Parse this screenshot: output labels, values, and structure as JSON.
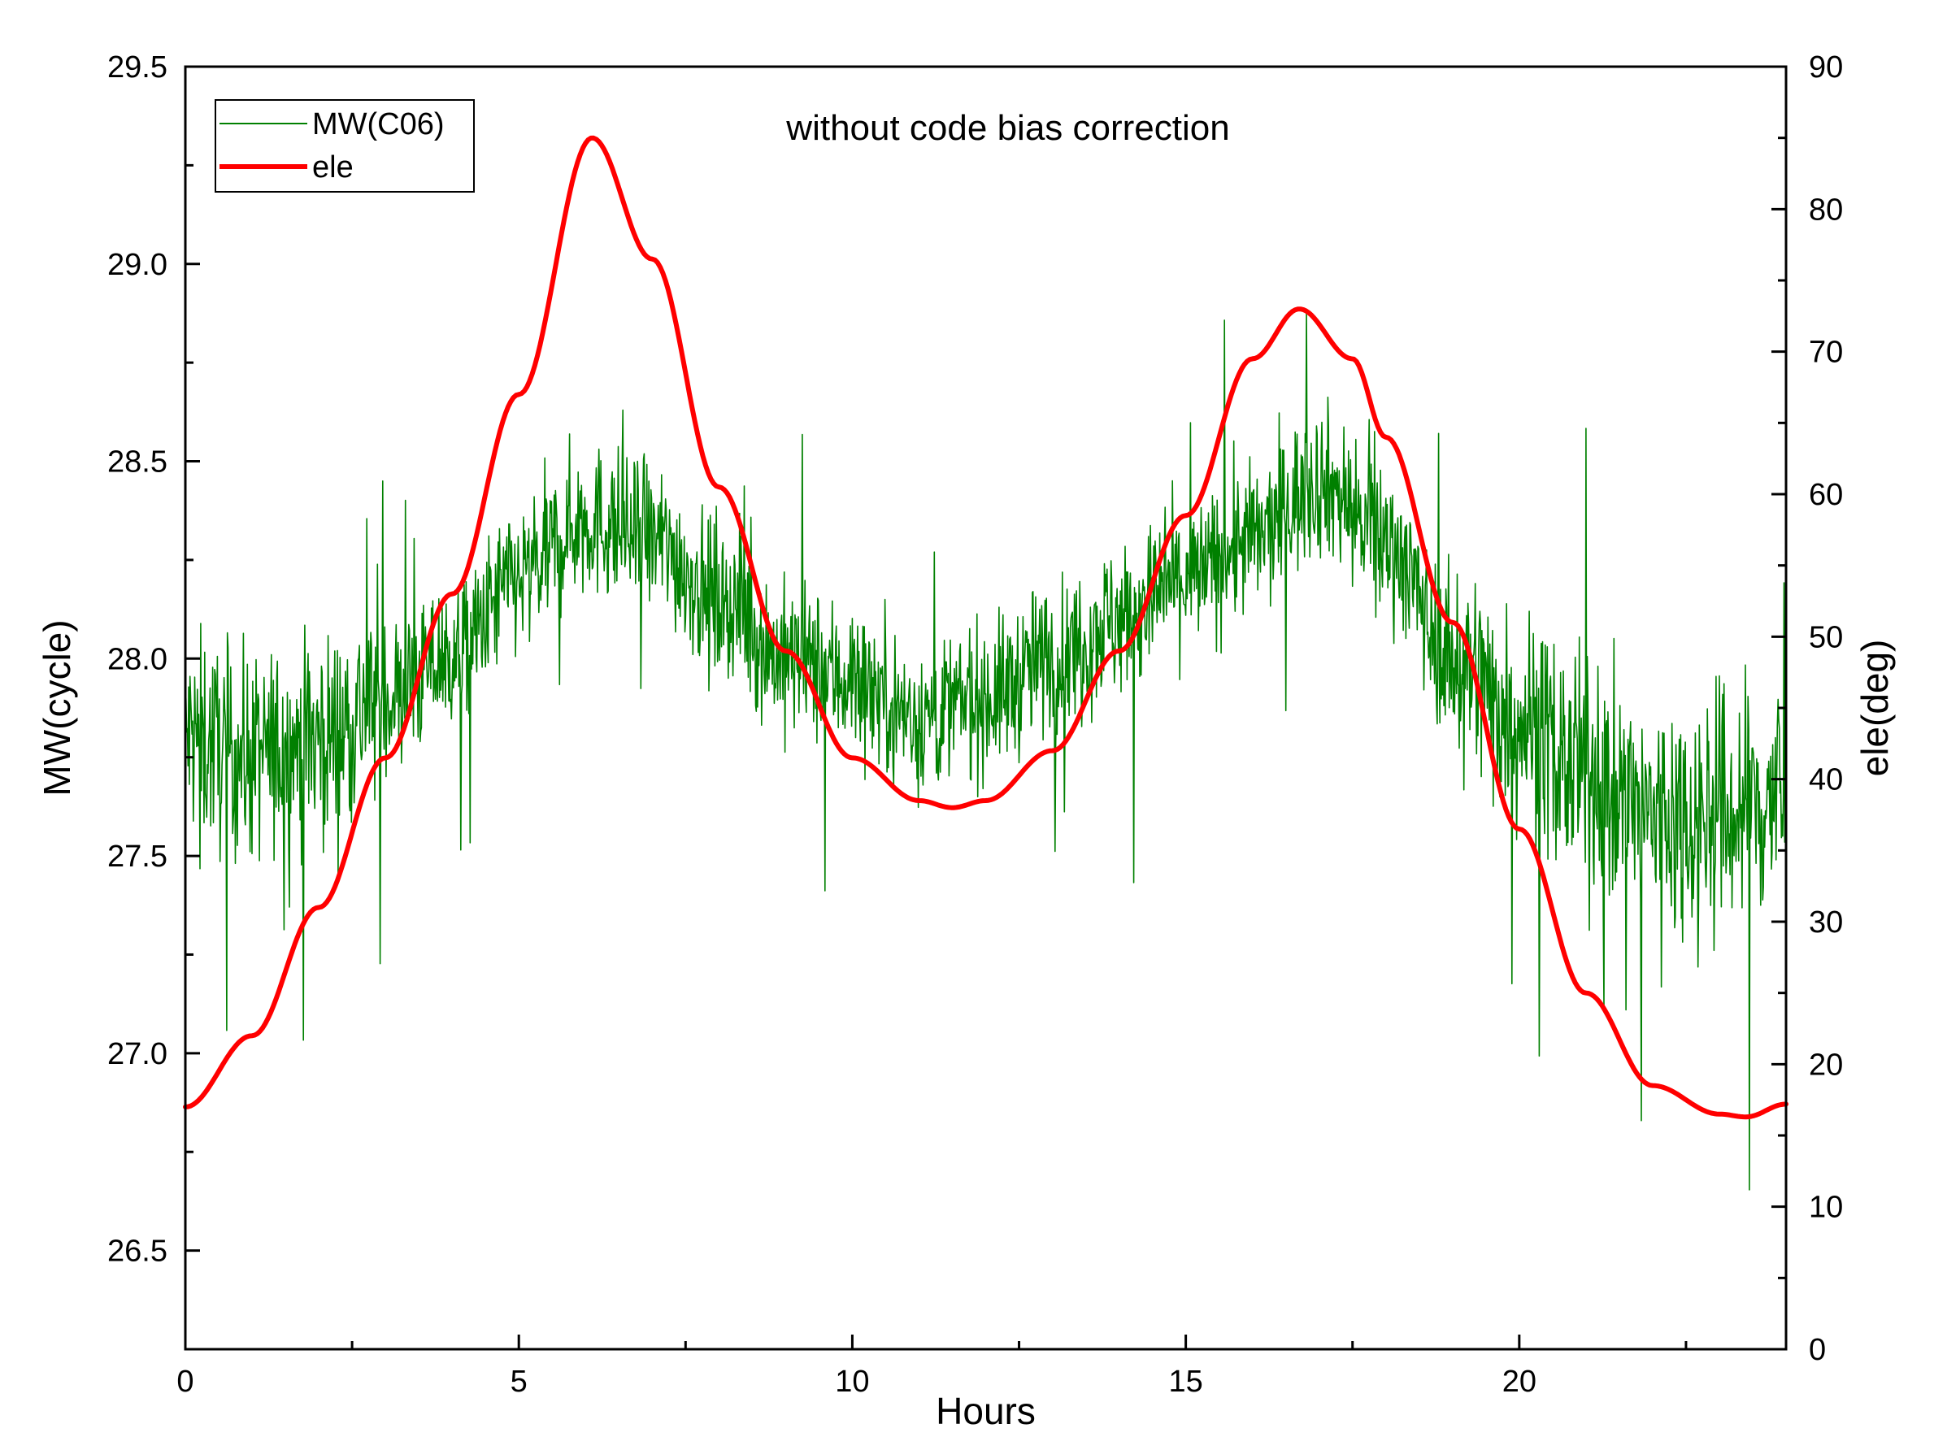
{
  "chart_data": {
    "type": "line",
    "annotation": "without code bias correction",
    "xlabel": "Hours",
    "ylabel_left": "MW(cycle)",
    "ylabel_right": "ele(deg)",
    "xlim": [
      0,
      24
    ],
    "ylim_left": [
      26.25,
      29.5
    ],
    "ylim_right": [
      0,
      90
    ],
    "x_ticks": [
      0,
      5,
      10,
      15,
      20
    ],
    "x_tick_labels": [
      "0",
      "5",
      "10",
      "15",
      "20"
    ],
    "y_left_ticks": [
      26.5,
      27.0,
      27.5,
      28.0,
      28.5,
      29.0,
      29.5
    ],
    "y_left_tick_labels": [
      "26.5",
      "27.0",
      "27.5",
      "28.0",
      "28.5",
      "29.0",
      "29.5"
    ],
    "y_right_ticks": [
      0,
      10,
      20,
      30,
      40,
      50,
      60,
      70,
      80,
      90
    ],
    "y_right_tick_labels": [
      "0",
      "10",
      "20",
      "30",
      "40",
      "50",
      "60",
      "70",
      "80",
      "90"
    ],
    "legend_position": "top-left",
    "series": [
      {
        "name": "MW(C06)",
        "axis": "left",
        "color": "#008000",
        "style": "thin noisy line",
        "x": [
          0,
          1,
          2,
          3,
          4,
          5,
          6,
          7,
          8,
          9,
          10,
          11,
          12,
          13,
          14,
          15,
          16,
          17,
          18,
          19,
          20,
          21,
          22,
          23,
          24
        ],
        "values": [
          27.8,
          27.75,
          27.8,
          27.9,
          28.0,
          28.2,
          28.35,
          28.3,
          28.15,
          28.0,
          27.95,
          27.85,
          27.9,
          28.0,
          28.1,
          28.2,
          28.3,
          28.45,
          28.3,
          28.0,
          27.85,
          27.7,
          27.6,
          27.6,
          27.65
        ],
        "noise_amplitude": 0.25
      },
      {
        "name": "ele",
        "axis": "right",
        "color": "#ff0000",
        "style": "thick line",
        "x": [
          0,
          1,
          2,
          3,
          4,
          5,
          6.1,
          7,
          8,
          9,
          10,
          11,
          11.5,
          12,
          13,
          14,
          15,
          16,
          16.7,
          17.5,
          18,
          19,
          20,
          21,
          22,
          23,
          23.4,
          24
        ],
        "values": [
          17,
          22,
          31,
          41.5,
          53,
          67,
          85,
          76.5,
          60.5,
          49,
          41.5,
          38.5,
          38,
          38.5,
          42,
          49,
          58.5,
          69.5,
          73,
          69.5,
          64,
          51,
          36.5,
          25,
          18.5,
          16.5,
          16.3,
          17.2
        ]
      }
    ]
  }
}
